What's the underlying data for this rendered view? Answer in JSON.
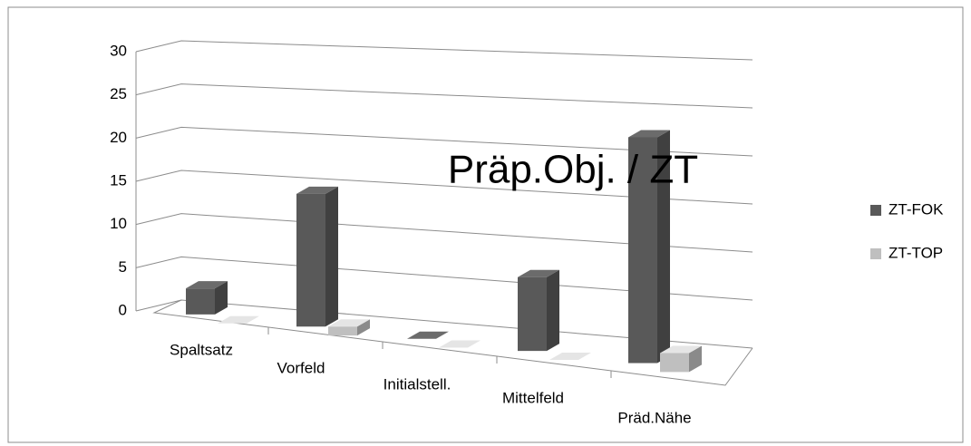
{
  "chart_data": {
    "type": "bar3d",
    "title": "Präp.Obj. / ZT",
    "categories": [
      "Spaltsatz",
      "Vorfeld",
      "Initialstell.",
      "Mittelfeld",
      "Präd.Nähe"
    ],
    "series": [
      {
        "name": "ZT-FOK",
        "color": "#595959",
        "values": [
          3,
          15,
          0,
          8,
          24
        ]
      },
      {
        "name": "ZT-TOP",
        "color": "#bfbfbf",
        "values": [
          0,
          1,
          0,
          0,
          2
        ]
      }
    ],
    "ylim": [
      0,
      30
    ],
    "yticks": [
      0,
      5,
      10,
      15,
      20,
      25,
      30
    ],
    "grid": true,
    "legend": "right"
  }
}
